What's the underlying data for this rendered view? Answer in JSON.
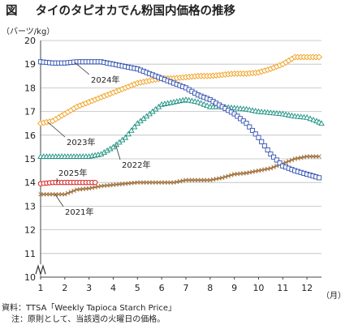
{
  "title": {
    "figure_label": "図",
    "text": "タイのタピオカでん粉国内価格の推移"
  },
  "chart_data": {
    "type": "line",
    "ylabel": "（バーツ/kg）",
    "xlabel": "（月）",
    "xlim": [
      1,
      12.6
    ],
    "ylim": [
      10,
      20
    ],
    "y_axis_break": true,
    "x_ticks": [
      "1",
      "2",
      "3",
      "4",
      "5",
      "6",
      "7",
      "8",
      "9",
      "10",
      "11",
      "12"
    ],
    "y_ticks": [
      "10",
      "11",
      "12",
      "13",
      "14",
      "15",
      "16",
      "17",
      "18",
      "19",
      "20"
    ],
    "grid": "horizontal",
    "series": [
      {
        "name": "2021年",
        "color": "#a0703a",
        "marker": "cross",
        "x": [
          1,
          2,
          2.5,
          3,
          3.5,
          4,
          4.5,
          5,
          5.5,
          6,
          6.5,
          7,
          7.5,
          8,
          8.5,
          9,
          9.5,
          10,
          10.5,
          11,
          11.5,
          12,
          12.5
        ],
        "y": [
          13.5,
          13.5,
          13.7,
          13.75,
          13.85,
          13.9,
          13.95,
          14.0,
          14.0,
          14.0,
          14.0,
          14.1,
          14.1,
          14.1,
          14.2,
          14.35,
          14.4,
          14.5,
          14.6,
          14.8,
          15.0,
          15.1,
          15.1
        ]
      },
      {
        "name": "2022年",
        "color": "#1a9080",
        "marker": "triangle",
        "x": [
          1,
          2,
          3,
          3.5,
          4,
          4.5,
          5,
          5.5,
          6,
          6.5,
          7,
          7.5,
          8,
          8.5,
          9,
          9.5,
          10,
          10.5,
          11,
          11.5,
          12,
          12.4,
          12.6
        ],
        "y": [
          15.1,
          15.1,
          15.1,
          15.2,
          15.5,
          15.9,
          16.5,
          16.9,
          17.3,
          17.4,
          17.5,
          17.4,
          17.2,
          17.2,
          17.15,
          17.1,
          17.0,
          16.95,
          16.9,
          16.8,
          16.75,
          16.6,
          16.5
        ]
      },
      {
        "name": "2023年",
        "color": "#f0a020",
        "marker": "diamond",
        "x": [
          1,
          1.5,
          2,
          2.5,
          3,
          3.5,
          4,
          4.5,
          5,
          5.5,
          6,
          6.5,
          7,
          7.5,
          8,
          8.5,
          9,
          9.5,
          10,
          10.5,
          11,
          11.5,
          12,
          12.5
        ],
        "y": [
          16.5,
          16.6,
          16.9,
          17.2,
          17.4,
          17.6,
          17.8,
          18.0,
          18.2,
          18.3,
          18.4,
          18.4,
          18.45,
          18.5,
          18.5,
          18.55,
          18.6,
          18.6,
          18.65,
          18.8,
          19.0,
          19.3,
          19.3,
          19.3
        ]
      },
      {
        "name": "2024年",
        "color": "#3050b0",
        "marker": "square",
        "x": [
          1,
          1.5,
          2,
          2.5,
          3,
          3.5,
          4,
          4.5,
          5,
          5.5,
          6,
          6.5,
          7,
          7.5,
          8,
          8.5,
          9,
          9.5,
          10,
          10.5,
          11,
          11.5,
          12,
          12.5
        ],
        "y": [
          19.1,
          19.05,
          19.05,
          19.1,
          19.1,
          19.1,
          19.0,
          18.9,
          18.8,
          18.6,
          18.4,
          18.2,
          18.0,
          17.7,
          17.5,
          17.2,
          16.9,
          16.5,
          15.9,
          15.2,
          14.7,
          14.5,
          14.35,
          14.2
        ]
      },
      {
        "name": "2025年",
        "color": "#d82020",
        "marker": "circle",
        "x": [
          1,
          1.5,
          2,
          2.5,
          3,
          3.25
        ],
        "y": [
          13.95,
          14.0,
          14.0,
          14.0,
          14.0,
          14.0
        ]
      }
    ]
  },
  "notes": {
    "source": "資料：TTSA「Weekly Tapioca Starch Price」",
    "note": "注：原則として、当該週の火曜日の価格。"
  }
}
